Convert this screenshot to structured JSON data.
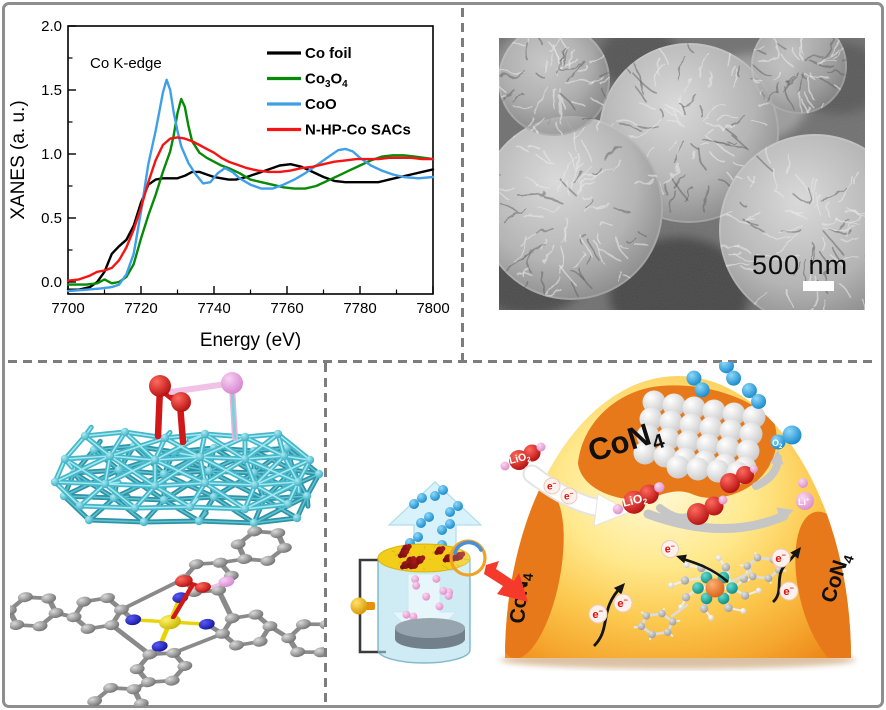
{
  "chart_data": {
    "type": "line",
    "title": "",
    "annotation": "Co K-edge",
    "xlabel": "Energy (eV)",
    "ylabel": "XANES (a. u.)",
    "xlim": [
      7700,
      7800
    ],
    "ylim": [
      -0.094,
      2.0
    ],
    "x_ticks": [
      7700,
      7720,
      7740,
      7760,
      7780,
      7800
    ],
    "y_ticks": [
      0.0,
      0.5,
      1.0,
      1.5,
      2.0
    ],
    "y_tick_labels": [
      "0.0",
      "0.5",
      "1.0",
      "1.5",
      "2.0"
    ],
    "grid": false,
    "legend_position": "top-right",
    "series": [
      {
        "name": "Co foil",
        "color": "#000000",
        "label_parts": [
          {
            "t": "Co foil"
          }
        ],
        "points": [
          [
            7700,
            -0.06
          ],
          [
            7703,
            -0.06
          ],
          [
            7706,
            -0.04
          ],
          [
            7708,
            0.0
          ],
          [
            7710,
            0.08
          ],
          [
            7712,
            0.22
          ],
          [
            7714,
            0.28
          ],
          [
            7716,
            0.33
          ],
          [
            7718,
            0.44
          ],
          [
            7720,
            0.62
          ],
          [
            7722,
            0.76
          ],
          [
            7724,
            0.8
          ],
          [
            7726,
            0.81
          ],
          [
            7728,
            0.81
          ],
          [
            7730,
            0.81
          ],
          [
            7732,
            0.83
          ],
          [
            7734,
            0.86
          ],
          [
            7736,
            0.86
          ],
          [
            7738,
            0.84
          ],
          [
            7740,
            0.82
          ],
          [
            7742,
            0.81
          ],
          [
            7744,
            0.8
          ],
          [
            7746,
            0.8
          ],
          [
            7749,
            0.82
          ],
          [
            7752,
            0.85
          ],
          [
            7755,
            0.88
          ],
          [
            7758,
            0.91
          ],
          [
            7761,
            0.92
          ],
          [
            7764,
            0.9
          ],
          [
            7767,
            0.86
          ],
          [
            7770,
            0.82
          ],
          [
            7773,
            0.79
          ],
          [
            7776,
            0.78
          ],
          [
            7779,
            0.78
          ],
          [
            7782,
            0.78
          ],
          [
            7785,
            0.78
          ],
          [
            7788,
            0.8
          ],
          [
            7791,
            0.82
          ],
          [
            7794,
            0.84
          ],
          [
            7797,
            0.86
          ],
          [
            7800,
            0.88
          ]
        ]
      },
      {
        "name": "Co3O4",
        "color": "#078a07",
        "label_parts": [
          {
            "t": "Co"
          },
          {
            "t": "3",
            "sub": true
          },
          {
            "t": "O"
          },
          {
            "t": "4",
            "sub": true
          }
        ],
        "points": [
          [
            7700,
            -0.02
          ],
          [
            7705,
            -0.02
          ],
          [
            7708,
            -0.01
          ],
          [
            7710,
            0.02
          ],
          [
            7712,
            -0.01
          ],
          [
            7714,
            0.0
          ],
          [
            7716,
            0.04
          ],
          [
            7718,
            0.14
          ],
          [
            7720,
            0.34
          ],
          [
            7722,
            0.52
          ],
          [
            7724,
            0.68
          ],
          [
            7726,
            0.86
          ],
          [
            7728,
            1.02
          ],
          [
            7729,
            1.15
          ],
          [
            7730,
            1.32
          ],
          [
            7731,
            1.43
          ],
          [
            7732,
            1.37
          ],
          [
            7733,
            1.22
          ],
          [
            7734,
            1.1
          ],
          [
            7736,
            1.01
          ],
          [
            7738,
            0.97
          ],
          [
            7740,
            0.94
          ],
          [
            7742,
            0.91
          ],
          [
            7744,
            0.89
          ],
          [
            7747,
            0.85
          ],
          [
            7750,
            0.8
          ],
          [
            7753,
            0.78
          ],
          [
            7756,
            0.76
          ],
          [
            7759,
            0.74
          ],
          [
            7762,
            0.73
          ],
          [
            7765,
            0.73
          ],
          [
            7768,
            0.75
          ],
          [
            7771,
            0.79
          ],
          [
            7774,
            0.83
          ],
          [
            7777,
            0.87
          ],
          [
            7780,
            0.91
          ],
          [
            7783,
            0.95
          ],
          [
            7786,
            0.98
          ],
          [
            7789,
            0.99
          ],
          [
            7792,
            0.99
          ],
          [
            7795,
            0.98
          ],
          [
            7800,
            0.96
          ]
        ]
      },
      {
        "name": "CoO",
        "color": "#3f9fe8",
        "label_parts": [
          {
            "t": "CoO"
          }
        ],
        "points": [
          [
            7700,
            -0.07
          ],
          [
            7705,
            -0.06
          ],
          [
            7709,
            -0.05
          ],
          [
            7712,
            -0.04
          ],
          [
            7714,
            -0.02
          ],
          [
            7716,
            0.06
          ],
          [
            7718,
            0.22
          ],
          [
            7720,
            0.55
          ],
          [
            7722,
            0.92
          ],
          [
            7724,
            1.18
          ],
          [
            7725,
            1.33
          ],
          [
            7726,
            1.48
          ],
          [
            7727,
            1.58
          ],
          [
            7728,
            1.5
          ],
          [
            7729,
            1.32
          ],
          [
            7730,
            1.18
          ],
          [
            7731,
            1.06
          ],
          [
            7733,
            0.93
          ],
          [
            7735,
            0.84
          ],
          [
            7737,
            0.77
          ],
          [
            7739,
            0.78
          ],
          [
            7741,
            0.85
          ],
          [
            7743,
            0.89
          ],
          [
            7745,
            0.86
          ],
          [
            7747,
            0.81
          ],
          [
            7750,
            0.76
          ],
          [
            7753,
            0.73
          ],
          [
            7756,
            0.73
          ],
          [
            7759,
            0.76
          ],
          [
            7762,
            0.8
          ],
          [
            7765,
            0.85
          ],
          [
            7768,
            0.91
          ],
          [
            7771,
            0.97
          ],
          [
            7774,
            1.03
          ],
          [
            7776,
            1.04
          ],
          [
            7778,
            1.02
          ],
          [
            7780,
            0.97
          ],
          [
            7783,
            0.91
          ],
          [
            7786,
            0.87
          ],
          [
            7789,
            0.84
          ],
          [
            7792,
            0.82
          ],
          [
            7796,
            0.81
          ],
          [
            7800,
            0.82
          ]
        ]
      },
      {
        "name": "N-HP-Co SACs",
        "color": "#f51414",
        "label_parts": [
          {
            "t": "N-HP-Co SACs"
          }
        ],
        "points": [
          [
            7700,
            0.01
          ],
          [
            7703,
            0.02
          ],
          [
            7706,
            0.05
          ],
          [
            7708,
            0.08
          ],
          [
            7710,
            0.09
          ],
          [
            7712,
            0.11
          ],
          [
            7714,
            0.17
          ],
          [
            7716,
            0.27
          ],
          [
            7718,
            0.41
          ],
          [
            7720,
            0.58
          ],
          [
            7722,
            0.78
          ],
          [
            7724,
            0.95
          ],
          [
            7726,
            1.07
          ],
          [
            7728,
            1.12
          ],
          [
            7730,
            1.13
          ],
          [
            7732,
            1.12
          ],
          [
            7734,
            1.1
          ],
          [
            7736,
            1.07
          ],
          [
            7738,
            1.04
          ],
          [
            7740,
            1.01
          ],
          [
            7742,
            0.97
          ],
          [
            7744,
            0.94
          ],
          [
            7746,
            0.92
          ],
          [
            7749,
            0.89
          ],
          [
            7752,
            0.87
          ],
          [
            7755,
            0.86
          ],
          [
            7758,
            0.86
          ],
          [
            7761,
            0.87
          ],
          [
            7764,
            0.89
          ],
          [
            7767,
            0.9
          ],
          [
            7770,
            0.92
          ],
          [
            7773,
            0.94
          ],
          [
            7776,
            0.95
          ],
          [
            7779,
            0.96
          ],
          [
            7782,
            0.96
          ],
          [
            7785,
            0.96
          ],
          [
            7788,
            0.97
          ],
          [
            7791,
            0.97
          ],
          [
            7794,
            0.97
          ],
          [
            7797,
            0.96
          ],
          [
            7800,
            0.96
          ]
        ]
      }
    ]
  },
  "sem_panel": {
    "scale_bar_label": "500 nm"
  },
  "mechanism_panel": {
    "con4_parts": [
      {
        "t": "CoN"
      },
      {
        "t": "4",
        "sub": true
      }
    ],
    "lio2_parts": [
      {
        "t": "LiO"
      },
      {
        "t": "2",
        "sub": true
      }
    ],
    "o2_parts": [
      {
        "t": "O"
      },
      {
        "t": "2",
        "sub": true
      }
    ],
    "li_ion_parts": [
      {
        "t": "Li"
      },
      {
        "t": "+",
        "sup": true
      }
    ],
    "electron_parts": [
      {
        "t": "e"
      },
      {
        "t": "−",
        "sup": true
      }
    ],
    "colors": {
      "dome_core": "#FFF9D6",
      "dome_edge": "#EC8418",
      "patch_orange": "#E8791A",
      "o2_blue": "#2BA3E8",
      "li_pink": "#EFA8E0",
      "lio2_red": "#E01414",
      "electron_text_red": "#E01010"
    }
  },
  "dft_panel": {
    "surface_color": "#4FC3D4",
    "oxygen_color": "#E02020",
    "lithium_color": "#ECA8E4",
    "nitrogen_color": "#2222DD",
    "cobalt_color": "#F2E200",
    "carbon_color": "#9A9A9A"
  }
}
